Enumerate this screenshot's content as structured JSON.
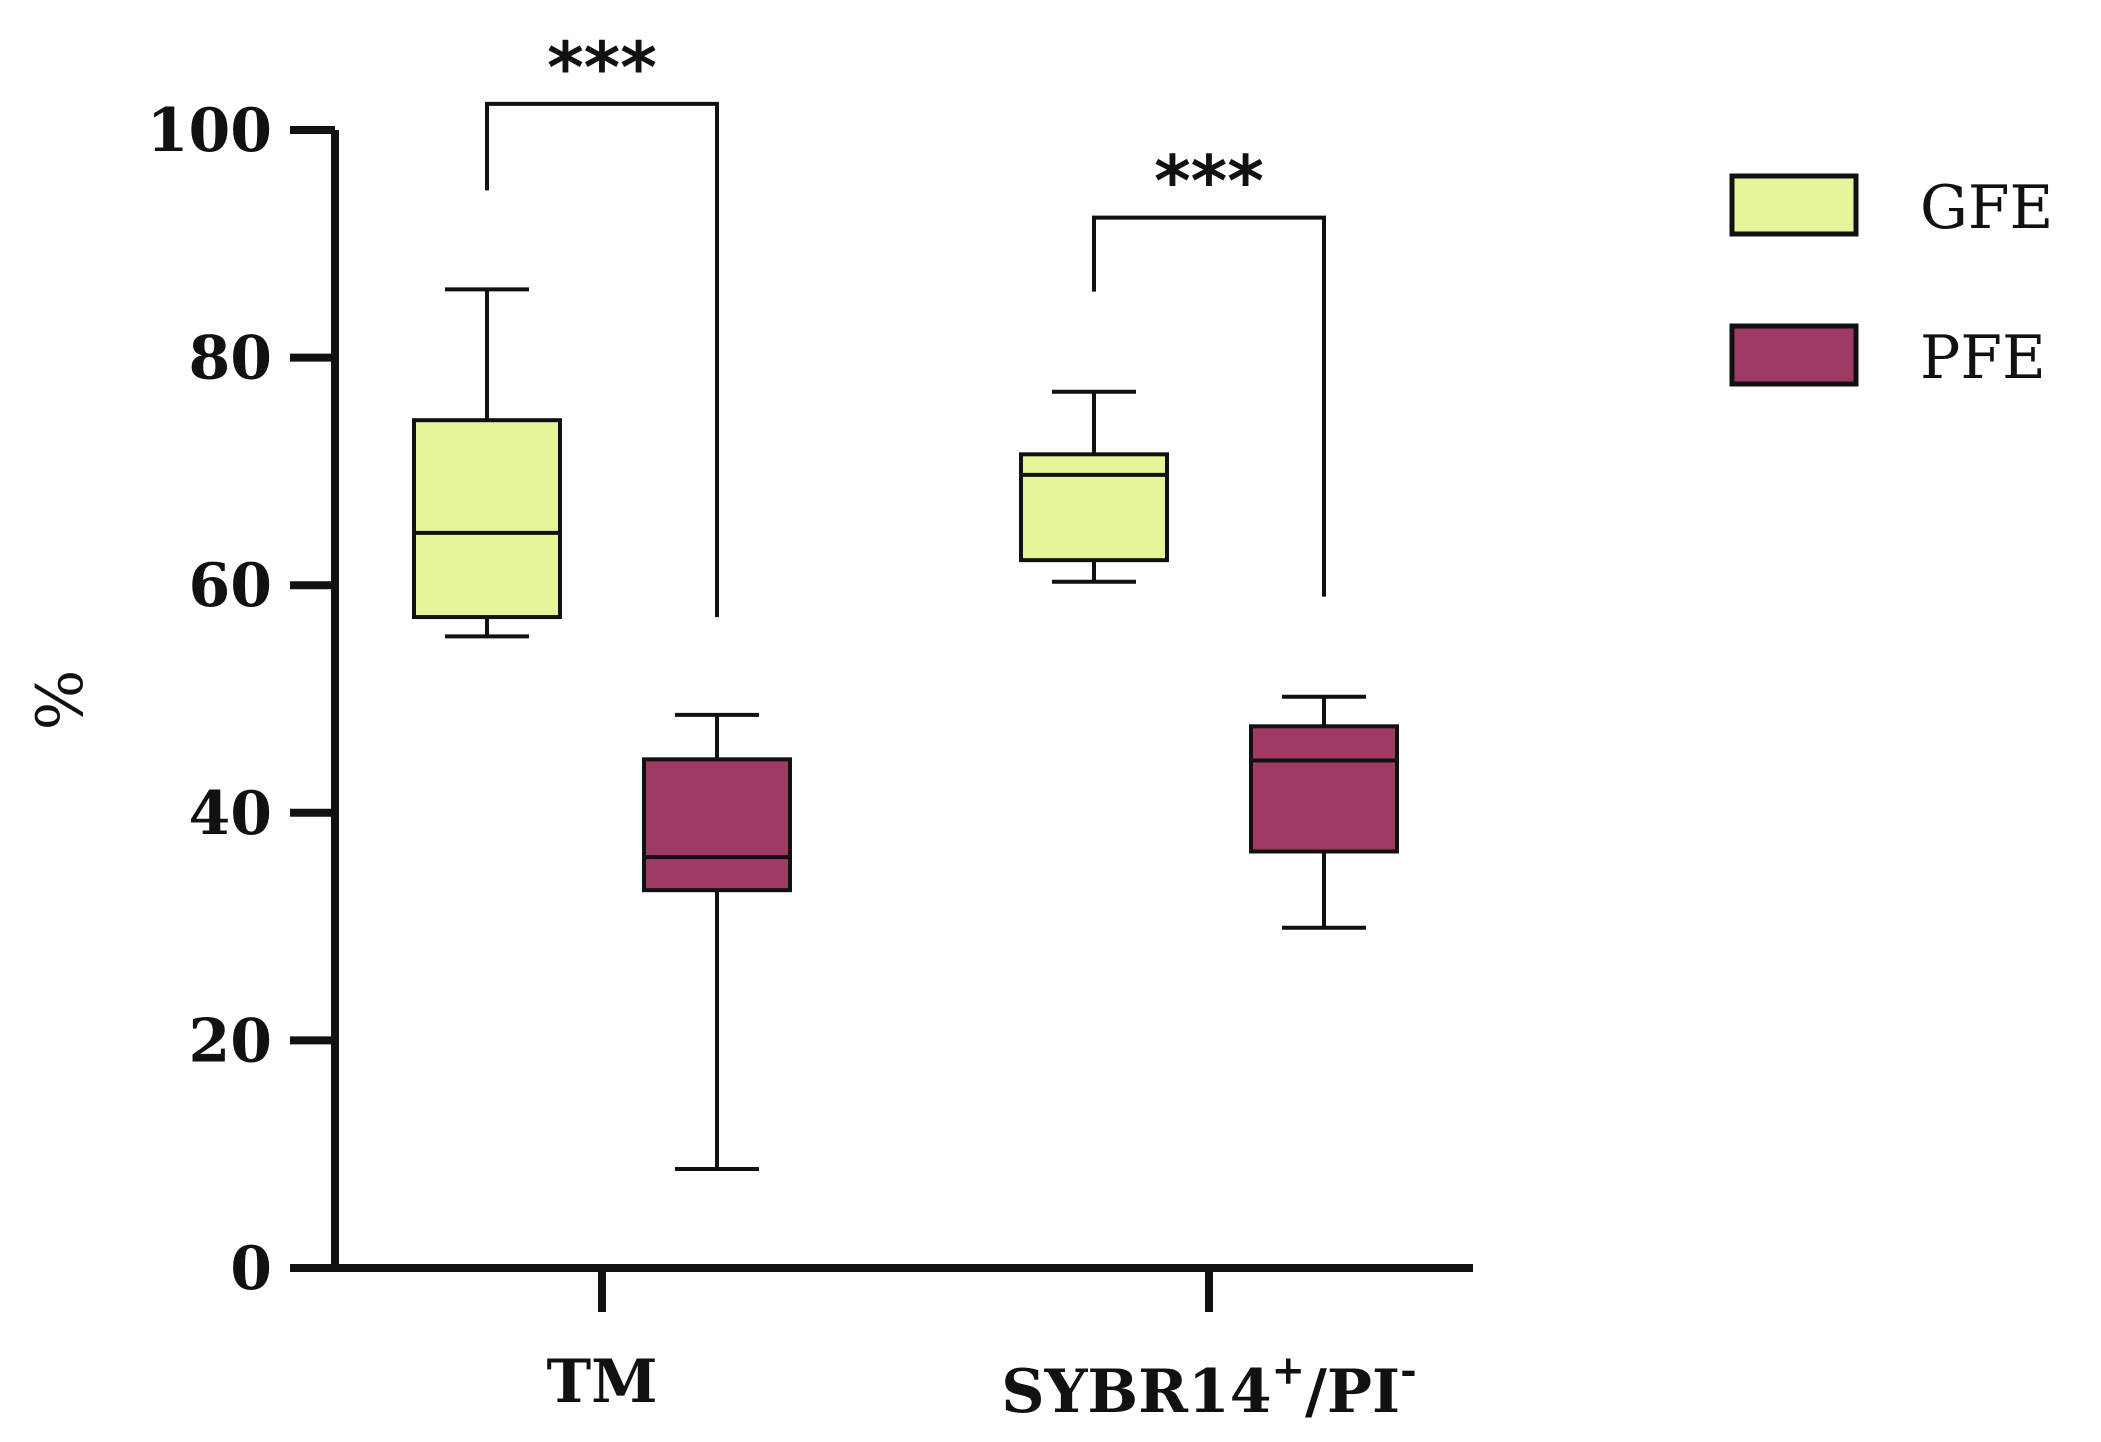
{
  "chart_data": {
    "type": "box",
    "ylabel": "%",
    "ylim": [
      0,
      100
    ],
    "yticks": [
      0,
      20,
      40,
      60,
      80,
      100
    ],
    "categories": [
      {
        "main": "TM"
      },
      {
        "main": "SYBR14",
        "sup1": "+",
        "mid": "/PI",
        "sup2": "-"
      }
    ],
    "series": [
      {
        "name": "GFE",
        "color": "#e5f59a",
        "boxes": [
          {
            "min": 55.5,
            "q1": 57.2,
            "median": 64.6,
            "q3": 74.5,
            "max": 86
          },
          {
            "min": 60.3,
            "q1": 62.2,
            "median": 69.7,
            "q3": 71.5,
            "max": 77
          }
        ]
      },
      {
        "name": "PFE",
        "color": "#9e3a64",
        "boxes": [
          {
            "min": 8.7,
            "q1": 33.2,
            "median": 36.1,
            "q3": 44.7,
            "max": 48.6
          },
          {
            "min": 29.9,
            "q1": 36.6,
            "median": 44.6,
            "q3": 47.6,
            "max": 50.2
          }
        ]
      }
    ],
    "annotations": [
      {
        "category": 0,
        "text": "***",
        "bracket_top": 102.3,
        "left_start": 94.7,
        "right_start": 57.2
      },
      {
        "category": 1,
        "text": "***",
        "bracket_top": 92.3,
        "left_start": 85.8,
        "right_start": 59.0
      }
    ],
    "legend": {
      "placement": "top-right"
    }
  }
}
